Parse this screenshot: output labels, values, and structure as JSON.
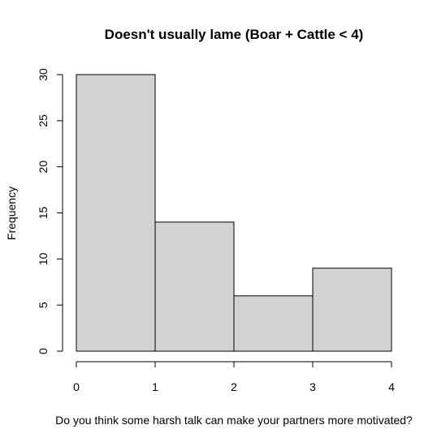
{
  "chart_data": {
    "type": "bar",
    "title": "Doesn't usually lame (Boar + Cattle < 4)",
    "xlabel": "Do you think some harsh talk can make your partners more motivated?",
    "ylabel": "Frequency",
    "bins": [
      {
        "start": 0,
        "end": 1,
        "value": 30
      },
      {
        "start": 1,
        "end": 2,
        "value": 14
      },
      {
        "start": 2,
        "end": 3,
        "value": 6
      },
      {
        "start": 3,
        "end": 4,
        "value": 9
      }
    ],
    "xlim": [
      0,
      4
    ],
    "ylim": [
      0,
      30
    ],
    "x_ticks": [
      0,
      1,
      2,
      3,
      4
    ],
    "y_ticks": [
      0,
      5,
      10,
      15,
      20,
      25,
      30
    ],
    "bar_color": "#d3d3d3",
    "edge_color": "#000000",
    "grid": false,
    "legend": "none"
  }
}
